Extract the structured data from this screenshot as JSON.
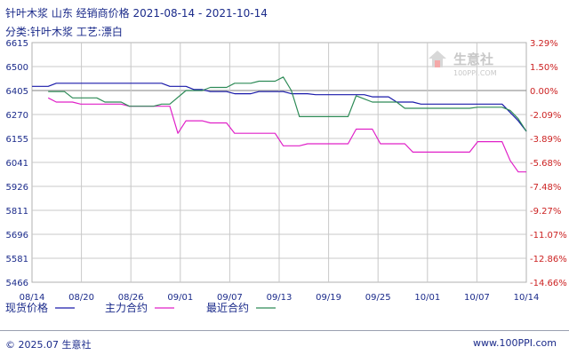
{
  "header": {
    "title": "针叶木浆 山东 经销商价格 2021-08-14 - 2021-10-14",
    "category": "分类:针叶木浆 工艺:漂白"
  },
  "watermark": {
    "name": "生意社",
    "url": "100PPI.COM",
    "icon": "100ppi-logo-icon"
  },
  "footer": {
    "copyright": "© 2025.07 生意社",
    "site": "www.100PPI.com"
  },
  "colors": {
    "spot": "#1a1aaa",
    "main": "#e020c8",
    "recent": "#2e8b57",
    "grid": "#c8c8c8",
    "text": "#1a2a8a",
    "pct_text": "#cc2222",
    "baseline": "#9a9a9a"
  },
  "chart_data": {
    "type": "line",
    "x_ticks": [
      "08/14",
      "08/20",
      "08/26",
      "09/01",
      "09/07",
      "09/13",
      "09/19",
      "09/25",
      "10/01",
      "10/07",
      "10/14"
    ],
    "x_start": "2021-08-14",
    "x_end": "2021-10-14",
    "ylim": [
      5466,
      6615
    ],
    "y_ticks": [
      6615,
      6500,
      6405,
      6270,
      6155,
      6041,
      5926,
      5811,
      5696,
      5581,
      5466
    ],
    "y2_ticks": [
      "3.29%",
      "1.50%",
      "0.00%",
      "-2.09%",
      "-3.89%",
      "-5.68%",
      "-7.48%",
      "-9.27%",
      "-11.07%",
      "-12.86%",
      "-14.66%"
    ],
    "legend_position": "bottom",
    "grid": true,
    "series": [
      {
        "name": "现货价格",
        "points": [
          [
            "2021-08-14",
            6405
          ],
          [
            "2021-08-16",
            6405
          ],
          [
            "2021-08-17",
            6420
          ],
          [
            "2021-08-30",
            6420
          ],
          [
            "2021-08-31",
            6405
          ],
          [
            "2021-09-02",
            6405
          ],
          [
            "2021-09-03",
            6390
          ],
          [
            "2021-09-04",
            6390
          ],
          [
            "2021-09-05",
            6380
          ],
          [
            "2021-09-07",
            6380
          ],
          [
            "2021-09-08",
            6370
          ],
          [
            "2021-09-10",
            6370
          ],
          [
            "2021-09-11",
            6380
          ],
          [
            "2021-09-14",
            6380
          ],
          [
            "2021-09-15",
            6370
          ],
          [
            "2021-09-17",
            6370
          ],
          [
            "2021-09-18",
            6365
          ],
          [
            "2021-09-24",
            6365
          ],
          [
            "2021-09-25",
            6355
          ],
          [
            "2021-09-27",
            6355
          ],
          [
            "2021-09-28",
            6330
          ],
          [
            "2021-09-30",
            6330
          ],
          [
            "2021-10-01",
            6320
          ],
          [
            "2021-10-10",
            6320
          ],
          [
            "2021-10-11",
            6320
          ],
          [
            "2021-10-12",
            6280
          ],
          [
            "2021-10-13",
            6240
          ],
          [
            "2021-10-14",
            6190
          ]
        ]
      },
      {
        "name": "主力合约",
        "points": [
          [
            "2021-08-16",
            6350
          ],
          [
            "2021-08-17",
            6330
          ],
          [
            "2021-08-19",
            6330
          ],
          [
            "2021-08-20",
            6320
          ],
          [
            "2021-08-25",
            6320
          ],
          [
            "2021-08-26",
            6310
          ],
          [
            "2021-08-31",
            6310
          ],
          [
            "2021-09-01",
            6180
          ],
          [
            "2021-09-02",
            6240
          ],
          [
            "2021-09-04",
            6240
          ],
          [
            "2021-09-05",
            6230
          ],
          [
            "2021-09-07",
            6230
          ],
          [
            "2021-09-08",
            6180
          ],
          [
            "2021-09-13",
            6180
          ],
          [
            "2021-09-14",
            6120
          ],
          [
            "2021-09-16",
            6120
          ],
          [
            "2021-09-17",
            6130
          ],
          [
            "2021-09-22",
            6130
          ],
          [
            "2021-09-23",
            6200
          ],
          [
            "2021-09-25",
            6200
          ],
          [
            "2021-09-26",
            6130
          ],
          [
            "2021-09-29",
            6130
          ],
          [
            "2021-09-30",
            6090
          ],
          [
            "2021-10-07",
            6090
          ],
          [
            "2021-10-08",
            6140
          ],
          [
            "2021-10-11",
            6140
          ],
          [
            "2021-10-12",
            6050
          ],
          [
            "2021-10-13",
            5995
          ],
          [
            "2021-10-14",
            5995
          ]
        ]
      },
      {
        "name": "最近合约",
        "points": [
          [
            "2021-08-16",
            6380
          ],
          [
            "2021-08-18",
            6380
          ],
          [
            "2021-08-19",
            6350
          ],
          [
            "2021-08-22",
            6350
          ],
          [
            "2021-08-23",
            6330
          ],
          [
            "2021-08-25",
            6330
          ],
          [
            "2021-08-26",
            6310
          ],
          [
            "2021-08-29",
            6310
          ],
          [
            "2021-08-30",
            6320
          ],
          [
            "2021-08-31",
            6320
          ],
          [
            "2021-09-02",
            6385
          ],
          [
            "2021-09-04",
            6385
          ],
          [
            "2021-09-05",
            6400
          ],
          [
            "2021-09-07",
            6400
          ],
          [
            "2021-09-08",
            6420
          ],
          [
            "2021-09-10",
            6420
          ],
          [
            "2021-09-11",
            6430
          ],
          [
            "2021-09-13",
            6430
          ],
          [
            "2021-09-14",
            6450
          ],
          [
            "2021-09-15",
            6385
          ],
          [
            "2021-09-16",
            6260
          ],
          [
            "2021-09-17",
            6260
          ],
          [
            "2021-09-19",
            6260
          ],
          [
            "2021-09-22",
            6260
          ],
          [
            "2021-09-23",
            6360
          ],
          [
            "2021-09-24",
            6345
          ],
          [
            "2021-09-25",
            6330
          ],
          [
            "2021-09-28",
            6330
          ],
          [
            "2021-09-29",
            6300
          ],
          [
            "2021-10-07",
            6300
          ],
          [
            "2021-10-08",
            6305
          ],
          [
            "2021-10-11",
            6305
          ],
          [
            "2021-10-12",
            6290
          ],
          [
            "2021-10-13",
            6250
          ],
          [
            "2021-10-14",
            6190
          ]
        ]
      }
    ]
  }
}
